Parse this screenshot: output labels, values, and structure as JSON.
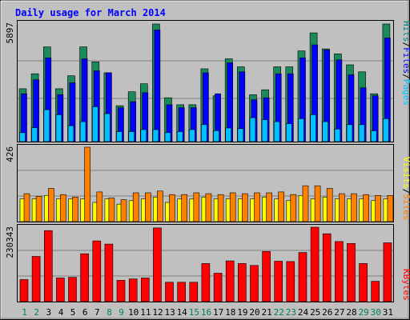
{
  "chart_data": {
    "type": "bar",
    "title": "Daily usage for March 2014",
    "categories": [
      "1",
      "2",
      "3",
      "4",
      "5",
      "6",
      "7",
      "8",
      "9",
      "10",
      "11",
      "12",
      "13",
      "14",
      "15",
      "16",
      "17",
      "18",
      "19",
      "20",
      "21",
      "22",
      "23",
      "24",
      "25",
      "26",
      "27",
      "28",
      "29",
      "30",
      "31"
    ],
    "weekend_days": [
      "1",
      "2",
      "8",
      "9",
      "15",
      "16",
      "22",
      "23",
      "29",
      "30"
    ],
    "panels": [
      {
        "id": "hits-files-pages",
        "axis_max_label": "5897",
        "ylim": [
          0,
          5897
        ],
        "legend": [
          {
            "name": "Pages",
            "color": "#00c0ff"
          },
          {
            "name": "Files",
            "color": "#0000ff"
          },
          {
            "name": "Hits",
            "color": "#008080"
          }
        ],
        "series": [
          {
            "name": "Hits",
            "color": "#1a8a5a",
            "values": [
              2650,
              3400,
              4750,
              2650,
              3300,
              4750,
              4000,
              3450,
              1800,
              2500,
              2900,
              5897,
              2200,
              1850,
              1850,
              3650,
              2300,
              4150,
              3750,
              2350,
              2600,
              3750,
              3750,
              4550,
              5450,
              4650,
              4400,
              3850,
              3500,
              2400,
              5897
            ]
          },
          {
            "name": "Files",
            "color": "#0000ff",
            "values": [
              2400,
              3100,
              4200,
              2350,
              2950,
              4150,
              3550,
              3450,
              1700,
              2000,
              2450,
              5600,
              1850,
              1700,
              1700,
              3450,
              2400,
              3950,
              3500,
              2100,
              2200,
              3400,
              3400,
              4200,
              4850,
              4600,
              4100,
              3350,
              2700,
              2300,
              5200
            ]
          },
          {
            "name": "Pages",
            "color": "#00c0ff",
            "values": [
              450,
              700,
              1600,
              1350,
              800,
              1000,
              1750,
              1400,
              500,
              500,
              600,
              600,
              450,
              500,
              600,
              850,
              550,
              680,
              650,
              1200,
              1100,
              1000,
              900,
              1150,
              1350,
              1000,
              630,
              850,
              850,
              540,
              1150
            ]
          }
        ]
      },
      {
        "id": "visits-sites",
        "axis_max_label": "426",
        "ylim": [
          0,
          426
        ],
        "legend": [
          {
            "name": "Sites",
            "color": "#ff8000"
          },
          {
            "name": "Visits",
            "color": "#ffff00"
          }
        ],
        "series": [
          {
            "name": "Visits",
            "color": "#ffff00",
            "values": [
              130,
              130,
              150,
              130,
              130,
              130,
              110,
              130,
              100,
              120,
              130,
              140,
              110,
              130,
              130,
              140,
              130,
              130,
              130,
              130,
              140,
              130,
              120,
              150,
              130,
              140,
              130,
              130,
              130,
              120,
              130
            ]
          },
          {
            "name": "Sites",
            "color": "#ff8000",
            "values": [
              160,
              145,
              190,
              155,
              140,
              426,
              170,
              135,
              125,
              165,
              165,
              175,
              155,
              155,
              165,
              160,
              155,
              165,
              160,
              165,
              165,
              170,
              155,
              205,
              205,
              190,
              160,
              160,
              155,
              150,
              150
            ]
          }
        ]
      },
      {
        "id": "kbytes",
        "axis_max_label": "230343",
        "ylim": [
          0,
          230343
        ],
        "legend": [
          {
            "name": "KBytes",
            "color": "#ff0000"
          }
        ],
        "series": [
          {
            "name": "KBytes",
            "color": "#ff0000",
            "values": [
              68000,
              140000,
              220000,
              73000,
              75000,
              148000,
              188000,
              178000,
              66000,
              70000,
              73000,
              228000,
              60000,
              60000,
              60000,
              118000,
              88000,
              126000,
              118000,
              112000,
              155000,
              125000,
              124000,
              152000,
              230343,
              210000,
              186000,
              180000,
              118000,
              63000,
              182000
            ]
          }
        ]
      }
    ],
    "grid": true
  }
}
